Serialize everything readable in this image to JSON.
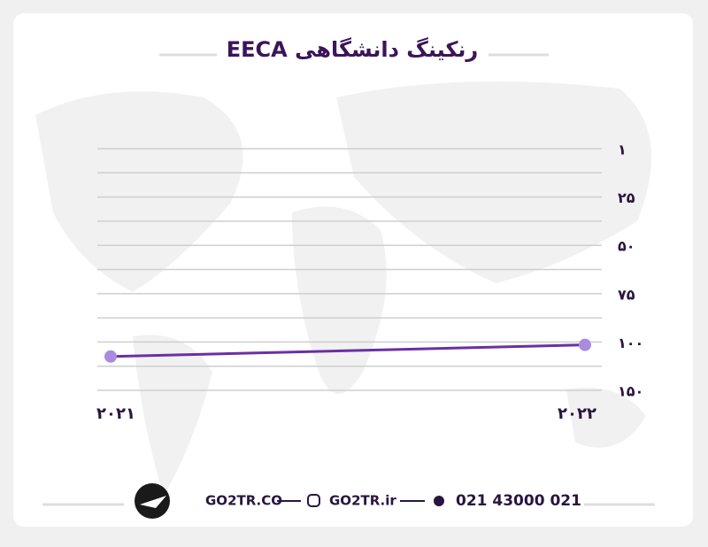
{
  "chart_data": {
    "type": "line",
    "title": "رنکینگ دانشگاهی EECA",
    "categories": [
      "۲۰۲۱",
      "۲۰۲۲"
    ],
    "series": [
      {
        "name": "EECA",
        "color": "#6b2fa3",
        "values": [
          115,
          103
        ]
      }
    ],
    "ylim": [
      1,
      150
    ],
    "inverted": true,
    "yticks": [
      {
        "value": 1,
        "label": "۱"
      },
      {
        "value": 25,
        "label": "۲۵"
      },
      {
        "value": 50,
        "label": "۵۰"
      },
      {
        "value": 75,
        "label": "۷۵"
      },
      {
        "value": 100,
        "label": "۱۰۰"
      },
      {
        "value": 150,
        "label": "۱۵۰"
      }
    ],
    "grid": true
  },
  "footer": {
    "website": "GO2TR.CO",
    "instagram": "GO2TR.ir",
    "phone": "021 43000 021"
  }
}
